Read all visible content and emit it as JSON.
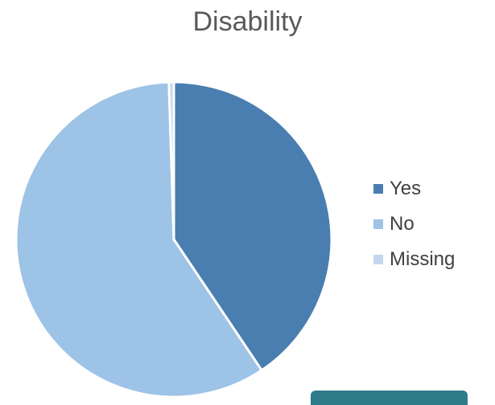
{
  "chart_data": {
    "type": "pie",
    "title": "Disability",
    "categories": [
      "Yes",
      "No",
      "Missing"
    ],
    "values": [
      40.6,
      58.9,
      0.5
    ],
    "colors": [
      "#4a7eb0",
      "#9dc3e6",
      "#c3d8ef"
    ],
    "legend_position": "right",
    "start_angle": "top",
    "direction": "clockwise"
  }
}
